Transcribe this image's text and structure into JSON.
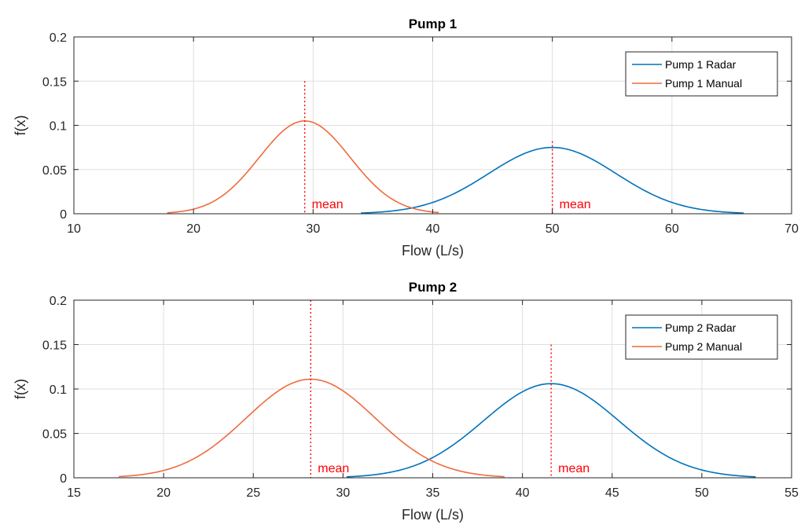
{
  "chart_data": [
    {
      "type": "line",
      "title": "Pump 1",
      "xlabel": "Flow (L/s)",
      "ylabel": "f(x)",
      "xlim": [
        10,
        70
      ],
      "ylim": [
        0,
        0.2
      ],
      "xticks": [
        "10",
        "20",
        "30",
        "40",
        "50",
        "60",
        "70"
      ],
      "yticks": [
        "0",
        "0.05",
        "0.1",
        "0.15",
        "0.2"
      ],
      "grid": true,
      "legend_position": "top-right",
      "series": [
        {
          "name": "Pump 1 Radar",
          "color": "#0072BD",
          "mean": 50,
          "peak": 0.075,
          "x_range": [
            34,
            66
          ]
        },
        {
          "name": "Pump 1 Manual",
          "color": "#EE6B3D",
          "mean": 29.3,
          "peak": 0.105,
          "x_range": [
            17.8,
            40.5
          ]
        }
      ],
      "mean_lines": [
        {
          "x": 29.3,
          "y_top": 0.15,
          "label": "mean"
        },
        {
          "x": 50,
          "y_top": 0.082,
          "label": "mean"
        }
      ],
      "mean_line_color": "#FF0000"
    },
    {
      "type": "line",
      "title": "Pump 2",
      "xlabel": "Flow (L/s)",
      "ylabel": "f(x)",
      "xlim": [
        15,
        55
      ],
      "ylim": [
        0,
        0.2
      ],
      "xticks": [
        "15",
        "20",
        "25",
        "30",
        "35",
        "40",
        "45",
        "50",
        "55"
      ],
      "yticks": [
        "0",
        "0.05",
        "0.1",
        "0.15",
        "0.2"
      ],
      "grid": true,
      "legend_position": "top-right",
      "series": [
        {
          "name": "Pump 2 Radar",
          "color": "#0072BD",
          "mean": 41.6,
          "peak": 0.106,
          "x_range": [
            30.2,
            53
          ]
        },
        {
          "name": "Pump 2 Manual",
          "color": "#EE6B3D",
          "mean": 28.2,
          "peak": 0.111,
          "x_range": [
            17.5,
            39
          ]
        }
      ],
      "mean_lines": [
        {
          "x": 28.2,
          "y_top": 0.2,
          "label": "mean"
        },
        {
          "x": 41.6,
          "y_top": 0.15,
          "label": "mean"
        }
      ],
      "mean_line_color": "#FF0000"
    }
  ]
}
